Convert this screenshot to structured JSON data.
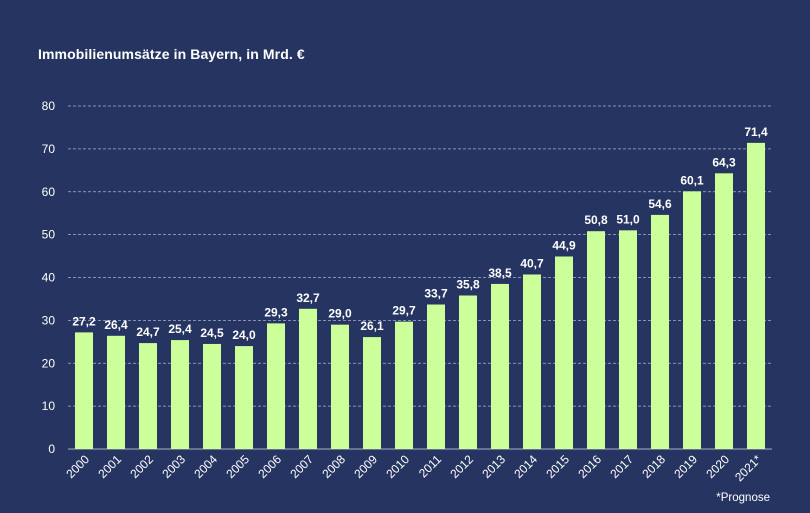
{
  "chart_data": {
    "type": "bar",
    "title": "Immobilienumsätze in Bayern, in Mrd. €",
    "xlabel": "",
    "ylabel": "",
    "ylim": [
      0,
      80
    ],
    "yticks": [
      0,
      10,
      20,
      30,
      40,
      50,
      60,
      70,
      80
    ],
    "grid": true,
    "legend": "none",
    "categories": [
      "2000",
      "2001",
      "2002",
      "2003",
      "2004",
      "2005",
      "2006",
      "2007",
      "2008",
      "2009",
      "2010",
      "2011",
      "2012",
      "2013",
      "2014",
      "2015",
      "2016",
      "2017",
      "2018",
      "2019",
      "2020",
      "2021*"
    ],
    "values": [
      27.2,
      26.4,
      24.7,
      25.4,
      24.5,
      24.0,
      29.3,
      32.7,
      29.0,
      26.1,
      29.7,
      33.7,
      35.8,
      38.5,
      40.7,
      44.9,
      50.8,
      51.0,
      54.6,
      60.1,
      64.3,
      71.4
    ],
    "data_labels": [
      "27,2",
      "26,4",
      "24,7",
      "25,4",
      "24,5",
      "24,0",
      "29,3",
      "32,7",
      "29,0",
      "26,1",
      "29,7",
      "33,7",
      "35,8",
      "38,5",
      "40,7",
      "44,9",
      "50,8",
      "51,0",
      "54,6",
      "60,1",
      "64,3",
      "71,4"
    ],
    "footnote": "*Prognose",
    "colors": {
      "background": "#263462",
      "bar": "#ccff99",
      "gridline": "#aab0c8",
      "text": "#ffffff"
    }
  }
}
